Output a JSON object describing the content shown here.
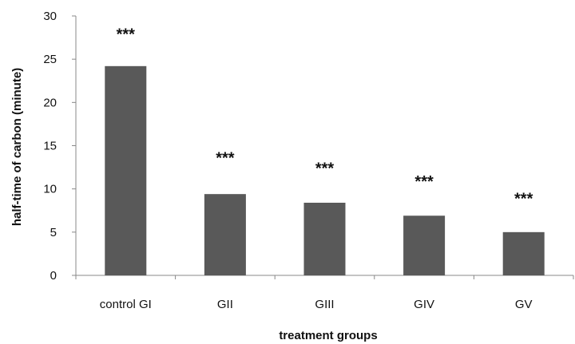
{
  "chart_data": {
    "type": "bar",
    "title": "",
    "xlabel": "treatment groups",
    "ylabel": "half-time of carbon (minute)",
    "categories": [
      "control GI",
      "GII",
      "GIII",
      "GIV",
      "GV"
    ],
    "values": [
      24.2,
      9.4,
      8.4,
      6.9,
      5.0
    ],
    "annotations": [
      "***",
      "***",
      "***",
      "***",
      "***"
    ],
    "annotation_values": [
      28.0,
      13.7,
      12.5,
      11.0,
      9.0
    ],
    "ylim": [
      0,
      30
    ],
    "yticks": [
      "0",
      "5",
      "10",
      "15",
      "20",
      "25",
      "30"
    ],
    "grid": false,
    "bar_color": "#595959"
  }
}
